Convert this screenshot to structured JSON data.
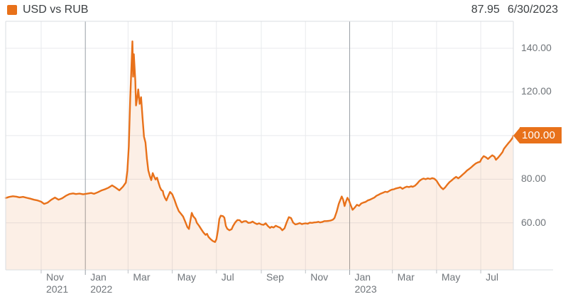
{
  "header": {
    "legend_label": "USD vs RUB",
    "last_value": "87.95",
    "last_value_date": "6/30/2023"
  },
  "price_tag": {
    "label": "100.00",
    "value": 100.0
  },
  "colors": {
    "accent": "#e8711a",
    "area_fill_opacity": 0.11,
    "grid": "#e8eaed",
    "grid_dark": "#9aa0a6",
    "border": "#dadce0",
    "tick": "#bdc1c6",
    "axis_text": "#70757a",
    "header_text": "#3c4043"
  },
  "chart_data": {
    "type": "area",
    "title": "USD vs RUB",
    "legend_position": "top-left",
    "grid": true,
    "x_axis": {
      "start_date": "2021-09-13",
      "end_date": "2023-08-15",
      "ticks": [
        {
          "date": "2021-11-01",
          "label": "Nov",
          "sublabel": "2021",
          "dark": false
        },
        {
          "date": "2022-01-01",
          "label": "Jan",
          "sublabel": "2022",
          "dark": true
        },
        {
          "date": "2022-03-01",
          "label": "Mar",
          "sublabel": "",
          "dark": false
        },
        {
          "date": "2022-05-01",
          "label": "May",
          "sublabel": "",
          "dark": false
        },
        {
          "date": "2022-07-01",
          "label": "Jul",
          "sublabel": "",
          "dark": false
        },
        {
          "date": "2022-09-01",
          "label": "Sep",
          "sublabel": "",
          "dark": false
        },
        {
          "date": "2022-11-01",
          "label": "Nov",
          "sublabel": "",
          "dark": false
        },
        {
          "date": "2023-01-01",
          "label": "Jan",
          "sublabel": "2023",
          "dark": true
        },
        {
          "date": "2023-03-01",
          "label": "Mar",
          "sublabel": "",
          "dark": false
        },
        {
          "date": "2023-05-01",
          "label": "May",
          "sublabel": "",
          "dark": false
        },
        {
          "date": "2023-07-01",
          "label": "Jul",
          "sublabel": "",
          "dark": false
        }
      ]
    },
    "y_axis": {
      "ticks": [
        {
          "value": 140,
          "label": "140.00",
          "highlighted": false
        },
        {
          "value": 120,
          "label": "120.00",
          "highlighted": false
        },
        {
          "value": 100,
          "label": "100.00",
          "highlighted": true
        },
        {
          "value": 80,
          "label": "80.00",
          "highlighted": false
        },
        {
          "value": 60,
          "label": "60.00",
          "highlighted": false
        }
      ],
      "top_value": 152.4,
      "bottom_value": 38.0
    },
    "series": [
      {
        "name": "USD vs RUB",
        "points": [
          [
            "2021-09-13",
            71.4
          ],
          [
            "2021-09-18",
            71.9
          ],
          [
            "2021-09-23",
            72.2
          ],
          [
            "2021-09-28",
            72.0
          ],
          [
            "2021-10-02",
            71.7
          ],
          [
            "2021-10-07",
            71.9
          ],
          [
            "2021-10-12",
            71.5
          ],
          [
            "2021-10-17",
            71.1
          ],
          [
            "2021-10-22",
            70.6
          ],
          [
            "2021-10-27",
            70.3
          ],
          [
            "2021-11-01",
            69.7
          ],
          [
            "2021-11-05",
            68.7
          ],
          [
            "2021-11-10",
            69.3
          ],
          [
            "2021-11-15",
            70.6
          ],
          [
            "2021-11-20",
            71.6
          ],
          [
            "2021-11-25",
            70.6
          ],
          [
            "2021-11-30",
            71.3
          ],
          [
            "2021-12-05",
            72.4
          ],
          [
            "2021-12-10",
            73.2
          ],
          [
            "2021-12-15",
            73.5
          ],
          [
            "2021-12-19",
            73.2
          ],
          [
            "2021-12-24",
            73.4
          ],
          [
            "2021-12-29",
            73.1
          ],
          [
            "2022-01-04",
            73.4
          ],
          [
            "2022-01-09",
            73.7
          ],
          [
            "2022-01-13",
            73.3
          ],
          [
            "2022-01-18",
            74.0
          ],
          [
            "2022-01-23",
            74.8
          ],
          [
            "2022-01-28",
            75.4
          ],
          [
            "2022-02-02",
            76.1
          ],
          [
            "2022-02-07",
            77.2
          ],
          [
            "2022-02-12",
            76.1
          ],
          [
            "2022-02-17",
            74.9
          ],
          [
            "2022-02-22",
            76.6
          ],
          [
            "2022-02-26",
            78.5
          ],
          [
            "2022-02-28",
            84.0
          ],
          [
            "2022-03-02",
            95.0
          ],
          [
            "2022-03-04",
            117.0
          ],
          [
            "2022-03-07",
            143.2
          ],
          [
            "2022-03-08",
            127.0
          ],
          [
            "2022-03-09",
            137.3
          ],
          [
            "2022-03-11",
            125.0
          ],
          [
            "2022-03-12",
            113.8
          ],
          [
            "2022-03-14",
            118.0
          ],
          [
            "2022-03-15",
            121.2
          ],
          [
            "2022-03-17",
            114.5
          ],
          [
            "2022-03-19",
            117.6
          ],
          [
            "2022-03-21",
            108.0
          ],
          [
            "2022-03-23",
            99.5
          ],
          [
            "2022-03-25",
            96.8
          ],
          [
            "2022-03-27",
            89.5
          ],
          [
            "2022-03-29",
            84.0
          ],
          [
            "2022-03-31",
            81.5
          ],
          [
            "2022-04-02",
            79.6
          ],
          [
            "2022-04-04",
            82.8
          ],
          [
            "2022-04-06",
            81.2
          ],
          [
            "2022-04-08",
            79.9
          ],
          [
            "2022-04-10",
            80.7
          ],
          [
            "2022-04-12",
            78.5
          ],
          [
            "2022-04-14",
            76.3
          ],
          [
            "2022-04-16",
            75.0
          ],
          [
            "2022-04-18",
            74.6
          ],
          [
            "2022-04-19",
            73.0
          ],
          [
            "2022-04-21",
            71.4
          ],
          [
            "2022-04-23",
            70.3
          ],
          [
            "2022-04-25",
            72.0
          ],
          [
            "2022-04-28",
            74.2
          ],
          [
            "2022-05-01",
            73.1
          ],
          [
            "2022-05-04",
            70.6
          ],
          [
            "2022-05-07",
            67.8
          ],
          [
            "2022-05-10",
            65.4
          ],
          [
            "2022-05-13",
            64.2
          ],
          [
            "2022-05-16",
            62.9
          ],
          [
            "2022-05-19",
            60.5
          ],
          [
            "2022-05-22",
            58.0
          ],
          [
            "2022-05-24",
            57.2
          ],
          [
            "2022-05-26",
            61.0
          ],
          [
            "2022-05-28",
            64.6
          ],
          [
            "2022-05-30",
            63.0
          ],
          [
            "2022-06-02",
            61.9
          ],
          [
            "2022-06-04",
            60.0
          ],
          [
            "2022-06-07",
            58.7
          ],
          [
            "2022-06-10",
            57.1
          ],
          [
            "2022-06-13",
            55.6
          ],
          [
            "2022-06-16",
            54.5
          ],
          [
            "2022-06-18",
            55.0
          ],
          [
            "2022-06-20",
            53.6
          ],
          [
            "2022-06-23",
            52.5
          ],
          [
            "2022-06-26",
            51.7
          ],
          [
            "2022-06-29",
            51.2
          ],
          [
            "2022-07-01",
            52.5
          ],
          [
            "2022-07-03",
            56.5
          ],
          [
            "2022-07-05",
            61.8
          ],
          [
            "2022-07-07",
            63.3
          ],
          [
            "2022-07-10",
            63.1
          ],
          [
            "2022-07-12",
            62.4
          ],
          [
            "2022-07-14",
            58.6
          ],
          [
            "2022-07-16",
            57.3
          ],
          [
            "2022-07-19",
            56.6
          ],
          [
            "2022-07-22",
            57.1
          ],
          [
            "2022-07-24",
            58.6
          ],
          [
            "2022-07-27",
            60.2
          ],
          [
            "2022-07-30",
            61.3
          ],
          [
            "2022-08-02",
            61.2
          ],
          [
            "2022-08-05",
            60.2
          ],
          [
            "2022-08-08",
            60.7
          ],
          [
            "2022-08-11",
            60.8
          ],
          [
            "2022-08-14",
            60.0
          ],
          [
            "2022-08-17",
            60.1
          ],
          [
            "2022-08-20",
            60.6
          ],
          [
            "2022-08-23",
            59.9
          ],
          [
            "2022-08-26",
            59.4
          ],
          [
            "2022-08-29",
            59.8
          ],
          [
            "2022-09-01",
            59.3
          ],
          [
            "2022-09-04",
            59.1
          ],
          [
            "2022-09-07",
            59.8
          ],
          [
            "2022-09-10",
            58.6
          ],
          [
            "2022-09-13",
            57.7
          ],
          [
            "2022-09-15",
            58.2
          ],
          [
            "2022-09-18",
            57.9
          ],
          [
            "2022-09-21",
            58.7
          ],
          [
            "2022-09-24",
            58.2
          ],
          [
            "2022-09-27",
            57.8
          ],
          [
            "2022-09-30",
            56.6
          ],
          [
            "2022-10-03",
            57.5
          ],
          [
            "2022-10-06",
            60.2
          ],
          [
            "2022-10-09",
            62.6
          ],
          [
            "2022-10-12",
            62.2
          ],
          [
            "2022-10-15",
            60.1
          ],
          [
            "2022-10-18",
            59.3
          ],
          [
            "2022-10-21",
            59.5
          ],
          [
            "2022-10-24",
            59.9
          ],
          [
            "2022-10-27",
            59.4
          ],
          [
            "2022-10-29",
            59.6
          ],
          [
            "2022-11-01",
            59.8
          ],
          [
            "2022-11-04",
            59.6
          ],
          [
            "2022-11-07",
            60.1
          ],
          [
            "2022-11-10",
            60.0
          ],
          [
            "2022-11-13",
            60.2
          ],
          [
            "2022-11-16",
            60.3
          ],
          [
            "2022-11-19",
            60.5
          ],
          [
            "2022-11-21",
            60.2
          ],
          [
            "2022-11-24",
            60.4
          ],
          [
            "2022-11-27",
            60.8
          ],
          [
            "2022-11-30",
            60.8
          ],
          [
            "2022-12-03",
            60.9
          ],
          [
            "2022-12-06",
            61.1
          ],
          [
            "2022-12-09",
            61.5
          ],
          [
            "2022-12-11",
            62.2
          ],
          [
            "2022-12-14",
            65.0
          ],
          [
            "2022-12-17",
            68.8
          ],
          [
            "2022-12-21",
            72.1
          ],
          [
            "2022-12-23",
            70.6
          ],
          [
            "2022-12-25",
            67.7
          ],
          [
            "2022-12-27",
            69.9
          ],
          [
            "2022-12-29",
            71.5
          ],
          [
            "2022-12-31",
            70.3
          ],
          [
            "2023-01-02",
            68.5
          ],
          [
            "2023-01-05",
            66.0
          ],
          [
            "2023-01-08",
            67.0
          ],
          [
            "2023-01-11",
            68.3
          ],
          [
            "2023-01-14",
            67.8
          ],
          [
            "2023-01-17",
            68.9
          ],
          [
            "2023-01-20",
            69.3
          ],
          [
            "2023-01-23",
            69.6
          ],
          [
            "2023-01-26",
            70.3
          ],
          [
            "2023-01-29",
            70.6
          ],
          [
            "2023-02-01",
            71.1
          ],
          [
            "2023-02-04",
            71.6
          ],
          [
            "2023-02-07",
            72.4
          ],
          [
            "2023-02-10",
            72.9
          ],
          [
            "2023-02-13",
            73.4
          ],
          [
            "2023-02-16",
            73.8
          ],
          [
            "2023-02-19",
            74.3
          ],
          [
            "2023-02-22",
            74.1
          ],
          [
            "2023-02-25",
            74.7
          ],
          [
            "2023-02-28",
            75.2
          ],
          [
            "2023-03-03",
            75.4
          ],
          [
            "2023-03-06",
            75.8
          ],
          [
            "2023-03-09",
            76.0
          ],
          [
            "2023-03-12",
            76.3
          ],
          [
            "2023-03-15",
            75.6
          ],
          [
            "2023-03-18",
            76.2
          ],
          [
            "2023-03-21",
            76.6
          ],
          [
            "2023-03-24",
            76.4
          ],
          [
            "2023-03-27",
            76.8
          ],
          [
            "2023-03-29",
            76.5
          ],
          [
            "2023-04-01",
            77.0
          ],
          [
            "2023-04-04",
            77.9
          ],
          [
            "2023-04-07",
            79.1
          ],
          [
            "2023-04-10",
            79.9
          ],
          [
            "2023-04-13",
            80.3
          ],
          [
            "2023-04-16",
            80.0
          ],
          [
            "2023-04-19",
            80.4
          ],
          [
            "2023-04-22",
            80.1
          ],
          [
            "2023-04-25",
            80.5
          ],
          [
            "2023-04-28",
            80.2
          ],
          [
            "2023-05-01",
            79.3
          ],
          [
            "2023-05-04",
            77.7
          ],
          [
            "2023-05-07",
            76.3
          ],
          [
            "2023-05-10",
            75.4
          ],
          [
            "2023-05-13",
            76.3
          ],
          [
            "2023-05-16",
            77.6
          ],
          [
            "2023-05-19",
            78.7
          ],
          [
            "2023-05-22",
            79.5
          ],
          [
            "2023-05-25",
            80.4
          ],
          [
            "2023-05-28",
            81.1
          ],
          [
            "2023-05-31",
            80.4
          ],
          [
            "2023-06-03",
            81.2
          ],
          [
            "2023-06-06",
            82.1
          ],
          [
            "2023-06-09",
            83.0
          ],
          [
            "2023-06-12",
            84.0
          ],
          [
            "2023-06-15",
            84.7
          ],
          [
            "2023-06-18",
            85.5
          ],
          [
            "2023-06-21",
            86.4
          ],
          [
            "2023-06-24",
            87.2
          ],
          [
            "2023-06-27",
            87.7
          ],
          [
            "2023-06-30",
            88.0
          ],
          [
            "2023-07-02",
            89.3
          ],
          [
            "2023-07-05",
            90.6
          ],
          [
            "2023-07-08",
            90.1
          ],
          [
            "2023-07-11",
            89.3
          ],
          [
            "2023-07-14",
            90.2
          ],
          [
            "2023-07-17",
            91.0
          ],
          [
            "2023-07-20",
            90.3
          ],
          [
            "2023-07-22",
            88.9
          ],
          [
            "2023-07-25",
            89.9
          ],
          [
            "2023-07-28",
            91.1
          ],
          [
            "2023-07-31",
            92.4
          ],
          [
            "2023-08-02",
            93.9
          ],
          [
            "2023-08-05",
            95.2
          ],
          [
            "2023-08-08",
            96.5
          ],
          [
            "2023-08-11",
            97.6
          ],
          [
            "2023-08-14",
            99.0
          ],
          [
            "2023-08-15",
            100.0
          ]
        ]
      }
    ]
  }
}
